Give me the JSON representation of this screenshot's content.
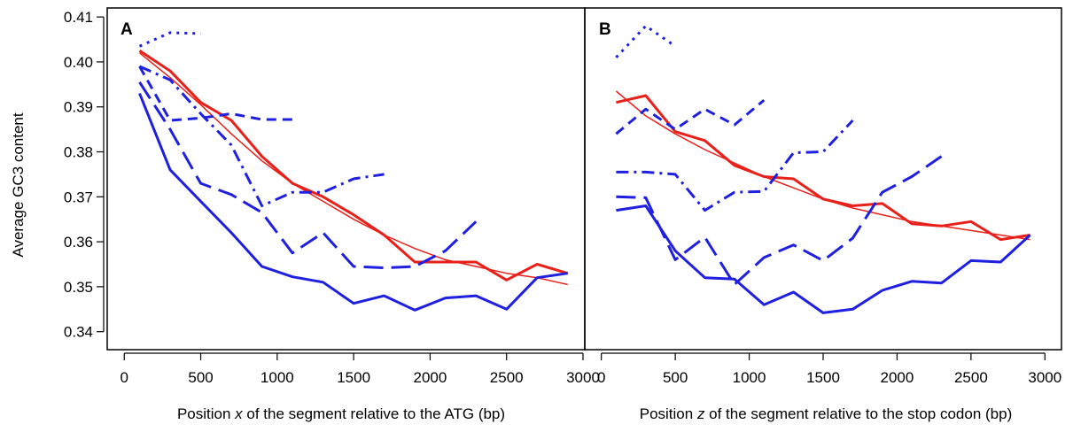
{
  "ylabel": "Average GC3 content",
  "colors": {
    "red": "#e8201a",
    "blue": "#1f1fe0"
  },
  "chart_data": [
    {
      "type": "line",
      "panel_label": "A",
      "xlabel_parts": [
        "Position ",
        "x",
        " of the segment relative to the ATG (bp)"
      ],
      "xlim": [
        -100,
        3000
      ],
      "ylim": [
        0.336,
        0.412
      ],
      "xticks": [
        0,
        500,
        1000,
        1500,
        2000,
        2500,
        3000
      ],
      "yticks": [
        0.34,
        0.35,
        0.36,
        0.37,
        0.38,
        0.39,
        0.4,
        0.41
      ],
      "ytick_labels": [
        "0.34",
        "0.35",
        "0.36",
        "0.37",
        "0.38",
        "0.39",
        "0.40",
        "0.41"
      ],
      "show_y_axis": true,
      "series": [
        {
          "color": "red",
          "style": "solid-thick",
          "x": [
            100,
            300,
            500,
            700,
            900,
            1100,
            1300,
            1500,
            1700,
            1900,
            2100,
            2300,
            2500,
            2700,
            2900
          ],
          "y": [
            0.4025,
            0.398,
            0.391,
            0.387,
            0.379,
            0.373,
            0.37,
            0.366,
            0.3615,
            0.3555,
            0.3555,
            0.3555,
            0.3515,
            0.355,
            0.353
          ]
        },
        {
          "color": "red",
          "style": "solid-thin",
          "x": [
            100,
            300,
            500,
            700,
            900,
            1100,
            1300,
            1500,
            1700,
            1900,
            2100,
            2300,
            2500,
            2700,
            2900
          ],
          "y": [
            0.402,
            0.3965,
            0.3905,
            0.384,
            0.378,
            0.373,
            0.369,
            0.365,
            0.3615,
            0.3585,
            0.356,
            0.3545,
            0.353,
            0.352,
            0.3505
          ]
        },
        {
          "color": "blue",
          "style": "solid",
          "x": [
            100,
            300,
            500,
            700,
            900,
            1100,
            1300,
            1500,
            1700,
            1900,
            2100,
            2300,
            2500,
            2700,
            2900
          ],
          "y": [
            0.393,
            0.376,
            0.369,
            0.362,
            0.3545,
            0.3522,
            0.351,
            0.3463,
            0.348,
            0.3448,
            0.3475,
            0.348,
            0.345,
            0.352,
            0.353
          ]
        },
        {
          "color": "blue",
          "style": "longdash",
          "x": [
            100,
            300,
            500,
            700,
            900,
            1100,
            1300,
            1500,
            1700,
            1900,
            2100,
            2300
          ],
          "y": [
            0.3955,
            0.385,
            0.373,
            0.3705,
            0.3665,
            0.3575,
            0.362,
            0.3545,
            0.3542,
            0.3545,
            0.358,
            0.3645
          ]
        },
        {
          "color": "blue",
          "style": "dashdot",
          "x": [
            100,
            300,
            500,
            700,
            900,
            1100,
            1300,
            1500,
            1700
          ],
          "y": [
            0.399,
            0.396,
            0.3885,
            0.3815,
            0.368,
            0.371,
            0.371,
            0.374,
            0.375
          ]
        },
        {
          "color": "blue",
          "style": "dash",
          "x": [
            100,
            300,
            500,
            700,
            900,
            1100
          ],
          "y": [
            0.399,
            0.387,
            0.3875,
            0.3885,
            0.3872,
            0.3872
          ]
        },
        {
          "color": "blue",
          "style": "dot",
          "x": [
            100,
            300,
            500
          ],
          "y": [
            0.4035,
            0.4065,
            0.4063
          ]
        }
      ]
    },
    {
      "type": "line",
      "panel_label": "B",
      "xlabel_parts": [
        "Position ",
        "z",
        " of the segment relative to the stop codon (bp)"
      ],
      "xlim": [
        -100,
        3100
      ],
      "ylim": [
        0.336,
        0.412
      ],
      "xticks": [
        0,
        500,
        1000,
        1500,
        2000,
        2500,
        3000
      ],
      "yticks": [],
      "ytick_labels": [],
      "show_y_axis": false,
      "series": [
        {
          "color": "red",
          "style": "solid-thick",
          "x": [
            100,
            300,
            500,
            700,
            900,
            1100,
            1300,
            1500,
            1700,
            1900,
            2100,
            2300,
            2500,
            2700,
            2900
          ],
          "y": [
            0.391,
            0.3925,
            0.3845,
            0.3825,
            0.377,
            0.3745,
            0.374,
            0.3695,
            0.368,
            0.3685,
            0.364,
            0.3635,
            0.3645,
            0.3605,
            0.3615
          ]
        },
        {
          "color": "red",
          "style": "solid-thin",
          "x": [
            100,
            300,
            500,
            700,
            900,
            1100,
            1300,
            1500,
            1700,
            1900,
            2100,
            2300,
            2500,
            2700,
            2900
          ],
          "y": [
            0.3935,
            0.388,
            0.384,
            0.3805,
            0.3775,
            0.3745,
            0.372,
            0.3695,
            0.3675,
            0.366,
            0.3645,
            0.3635,
            0.3625,
            0.3615,
            0.3605
          ]
        },
        {
          "color": "blue",
          "style": "solid",
          "x": [
            100,
            300,
            500,
            700,
            900,
            1100,
            1300,
            1500,
            1700,
            1900,
            2100,
            2300,
            2500,
            2700,
            2900
          ],
          "y": [
            0.367,
            0.368,
            0.358,
            0.352,
            0.3517,
            0.346,
            0.3488,
            0.3442,
            0.345,
            0.3492,
            0.3512,
            0.3508,
            0.3558,
            0.3555,
            0.3615
          ]
        },
        {
          "color": "blue",
          "style": "longdash",
          "x": [
            100,
            300,
            500,
            700,
            900,
            1100,
            1300,
            1500,
            1700,
            1900,
            2100,
            2300
          ],
          "y": [
            0.37,
            0.3698,
            0.356,
            0.361,
            0.3505,
            0.3565,
            0.3593,
            0.3558,
            0.3608,
            0.371,
            0.3745,
            0.379
          ]
        },
        {
          "color": "blue",
          "style": "dashdot",
          "x": [
            100,
            300,
            500,
            700,
            900,
            1100,
            1300,
            1500,
            1700
          ],
          "y": [
            0.3755,
            0.3755,
            0.375,
            0.367,
            0.371,
            0.3712,
            0.3798,
            0.38,
            0.387
          ]
        },
        {
          "color": "blue",
          "style": "dash",
          "x": [
            100,
            300,
            500,
            700,
            900,
            1100
          ],
          "y": [
            0.384,
            0.3895,
            0.385,
            0.3895,
            0.386,
            0.3915
          ]
        },
        {
          "color": "blue",
          "style": "dot",
          "x": [
            100,
            300,
            500
          ],
          "y": [
            0.401,
            0.408,
            0.4035
          ]
        }
      ]
    }
  ]
}
